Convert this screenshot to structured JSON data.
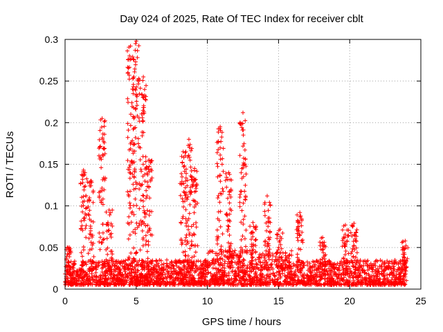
{
  "chart_data": {
    "type": "scatter",
    "title": "Day 024 of 2025, Rate Of TEC Index for receiver cblt",
    "xlabel": "GPS time / hours",
    "ylabel": "ROTI / TECUs",
    "xlim": [
      0,
      25
    ],
    "ylim": [
      0,
      0.3
    ],
    "xticks": [
      0,
      5,
      10,
      15,
      20,
      25
    ],
    "yticks": [
      0,
      0.05,
      0.1,
      0.15,
      0.2,
      0.25,
      0.3
    ],
    "xtick_labels": [
      "0",
      "5",
      "10",
      "15",
      "20",
      "25"
    ],
    "ytick_labels": [
      "0",
      "0.05",
      "0.1",
      "0.15",
      "0.2",
      "0.25",
      "0.3"
    ],
    "grid": true,
    "marker": "+",
    "series": [
      {
        "name": "ROTI",
        "color": "#ff0000",
        "baseline_band": [
          0.005,
          0.035
        ],
        "x_range": [
          0.0,
          24.0
        ],
        "bursts": [
          {
            "x": 0.3,
            "peak": 0.05
          },
          {
            "x": 1.3,
            "peak": 0.143
          },
          {
            "x": 1.8,
            "peak": 0.13
          },
          {
            "x": 2.6,
            "peak": 0.205
          },
          {
            "x": 3.1,
            "peak": 0.095
          },
          {
            "x": 4.6,
            "peak": 0.292
          },
          {
            "x": 5.0,
            "peak": 0.298
          },
          {
            "x": 5.5,
            "peak": 0.255
          },
          {
            "x": 5.9,
            "peak": 0.155
          },
          {
            "x": 8.3,
            "peak": 0.165
          },
          {
            "x": 8.7,
            "peak": 0.18
          },
          {
            "x": 9.1,
            "peak": 0.145
          },
          {
            "x": 10.9,
            "peak": 0.195
          },
          {
            "x": 11.5,
            "peak": 0.14
          },
          {
            "x": 12.5,
            "peak": 0.212
          },
          {
            "x": 13.2,
            "peak": 0.08
          },
          {
            "x": 14.2,
            "peak": 0.112
          },
          {
            "x": 15.1,
            "peak": 0.072
          },
          {
            "x": 16.5,
            "peak": 0.092
          },
          {
            "x": 18.1,
            "peak": 0.062
          },
          {
            "x": 19.7,
            "peak": 0.077
          },
          {
            "x": 20.3,
            "peak": 0.079
          },
          {
            "x": 23.9,
            "peak": 0.058
          }
        ]
      }
    ]
  }
}
